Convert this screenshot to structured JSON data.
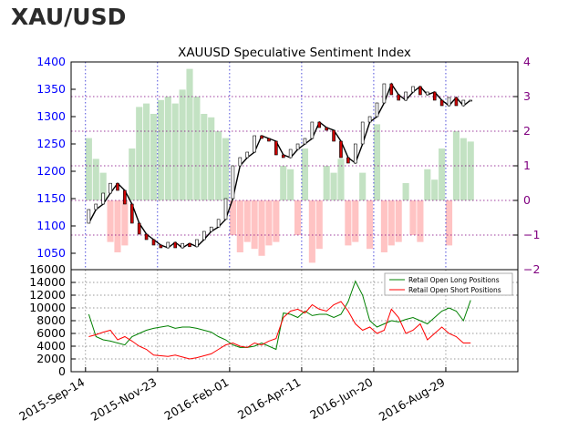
{
  "page": {
    "title": "XAU/USD"
  },
  "colors": {
    "price_axis": "#0000ff",
    "ssi_axis": "#800080",
    "long_fill": "#b8ddb8",
    "short_fill": "#ffb8b8",
    "long_line": "#008000",
    "short_line": "#ff0000"
  },
  "chart_data": [
    {
      "type": "candlestick+bar",
      "title": "XAUUSD Speculative Sentiment Index",
      "x_ticks": [
        "2015-Sep-14",
        "2015-Nov-23",
        "2016-Feb-01",
        "2016-Apr-11",
        "2016-Jun-20",
        "2016-Aug-29"
      ],
      "x_range": [
        "2015-Sep-14",
        "2016-Nov-07"
      ],
      "left_axis": {
        "ticks": [
          1050,
          1100,
          1150,
          1200,
          1250,
          1300,
          1350,
          1400
        ],
        "ylim": [
          1020,
          1400
        ]
      },
      "right_axis": {
        "ticks": [
          -2,
          -1,
          0,
          1,
          2,
          3,
          4
        ],
        "ylim": [
          -2,
          4
        ]
      },
      "grid": true,
      "price_series": {
        "name": "XAUUSD",
        "x": [
          "2015-Sep-14",
          "2015-Sep-21",
          "2015-Sep-28",
          "2015-Oct-05",
          "2015-Oct-12",
          "2015-Oct-19",
          "2015-Oct-26",
          "2015-Nov-02",
          "2015-Nov-09",
          "2015-Nov-16",
          "2015-Nov-23",
          "2015-Nov-30",
          "2015-Dec-07",
          "2015-Dec-14",
          "2015-Dec-21",
          "2015-Dec-28",
          "2016-Jan-04",
          "2016-Jan-11",
          "2016-Jan-18",
          "2016-Jan-25",
          "2016-Feb-01",
          "2016-Feb-08",
          "2016-Feb-15",
          "2016-Feb-22",
          "2016-Feb-29",
          "2016-Mar-07",
          "2016-Mar-14",
          "2016-Mar-21",
          "2016-Mar-28",
          "2016-Apr-04",
          "2016-Apr-11",
          "2016-Apr-18",
          "2016-Apr-25",
          "2016-May-02",
          "2016-May-09",
          "2016-May-16",
          "2016-May-23",
          "2016-May-30",
          "2016-Jun-06",
          "2016-Jun-13",
          "2016-Jun-20",
          "2016-Jun-27",
          "2016-Jul-04",
          "2016-Jul-11",
          "2016-Jul-18",
          "2016-Jul-25",
          "2016-Aug-01",
          "2016-Aug-08",
          "2016-Aug-15",
          "2016-Aug-22",
          "2016-Aug-29",
          "2016-Sep-05",
          "2016-Sep-12",
          "2016-Sep-19"
        ],
        "values": [
          1105,
          1130,
          1140,
          1160,
          1178,
          1165,
          1140,
          1105,
          1085,
          1075,
          1065,
          1060,
          1070,
          1060,
          1068,
          1062,
          1075,
          1090,
          1098,
          1112,
          1150,
          1210,
          1225,
          1235,
          1265,
          1260,
          1255,
          1230,
          1225,
          1240,
          1250,
          1260,
          1290,
          1280,
          1275,
          1255,
          1225,
          1215,
          1250,
          1290,
          1300,
          1325,
          1360,
          1340,
          1330,
          1345,
          1355,
          1340,
          1345,
          1330,
          1320,
          1335,
          1320,
          1330
        ]
      },
      "ssi_series": {
        "name": "SSI",
        "x": [
          "2015-Sep-14",
          "2015-Sep-21",
          "2015-Sep-28",
          "2015-Oct-05",
          "2015-Oct-12",
          "2015-Oct-19",
          "2015-Oct-26",
          "2015-Nov-02",
          "2015-Nov-09",
          "2015-Nov-16",
          "2015-Nov-23",
          "2015-Nov-30",
          "2015-Dec-07",
          "2015-Dec-14",
          "2015-Dec-21",
          "2015-Dec-28",
          "2016-Jan-04",
          "2016-Jan-11",
          "2016-Jan-18",
          "2016-Jan-25",
          "2016-Feb-01",
          "2016-Feb-08",
          "2016-Feb-15",
          "2016-Feb-22",
          "2016-Feb-29",
          "2016-Mar-07",
          "2016-Mar-14",
          "2016-Mar-21",
          "2016-Mar-28",
          "2016-Apr-04",
          "2016-Apr-11",
          "2016-Apr-18",
          "2016-Apr-25",
          "2016-May-02",
          "2016-May-09",
          "2016-May-16",
          "2016-May-23",
          "2016-May-30",
          "2016-Jun-06",
          "2016-Jun-13",
          "2016-Jun-20",
          "2016-Jun-27",
          "2016-Jul-04",
          "2016-Jul-11",
          "2016-Jul-18",
          "2016-Jul-25",
          "2016-Aug-01",
          "2016-Aug-08",
          "2016-Aug-15",
          "2016-Aug-22",
          "2016-Aug-29",
          "2016-Sep-05",
          "2016-Sep-12",
          "2016-Sep-19"
        ],
        "values": [
          1.8,
          1.2,
          0.8,
          -1.2,
          -1.5,
          -1.3,
          1.5,
          2.7,
          2.8,
          2.5,
          2.9,
          3.0,
          2.8,
          3.2,
          3.8,
          3.0,
          2.5,
          2.4,
          2.0,
          1.8,
          -1.0,
          -1.5,
          -1.2,
          -1.4,
          -1.6,
          -1.3,
          -1.2,
          1.0,
          0.9,
          -1.0,
          1.5,
          -1.8,
          -1.4,
          1.0,
          0.8,
          1.2,
          -1.3,
          -1.2,
          0.8,
          -1.4,
          2.2,
          -1.5,
          -1.3,
          -1.2,
          0.5,
          -1.0,
          -1.2,
          0.9,
          0.6,
          1.5,
          -1.3,
          2.0,
          1.8,
          1.7
        ]
      }
    },
    {
      "type": "line",
      "x_ticks": [
        "2015-Sep-14",
        "2015-Nov-23",
        "2016-Feb-01",
        "2016-Apr-11",
        "2016-Jun-20",
        "2016-Aug-29"
      ],
      "x_range": [
        "2015-Sep-14",
        "2016-Nov-07"
      ],
      "yticks": [
        0,
        2000,
        4000,
        6000,
        8000,
        10000,
        12000,
        14000,
        16000
      ],
      "ylim": [
        0,
        16000
      ],
      "grid": true,
      "legend_position": "top-right",
      "x": [
        "2015-Sep-14",
        "2015-Sep-21",
        "2015-Sep-28",
        "2015-Oct-05",
        "2015-Oct-12",
        "2015-Oct-19",
        "2015-Oct-26",
        "2015-Nov-02",
        "2015-Nov-09",
        "2015-Nov-16",
        "2015-Nov-23",
        "2015-Nov-30",
        "2015-Dec-07",
        "2015-Dec-14",
        "2015-Dec-21",
        "2015-Dec-28",
        "2016-Jan-04",
        "2016-Jan-11",
        "2016-Jan-18",
        "2016-Jan-25",
        "2016-Feb-01",
        "2016-Feb-08",
        "2016-Feb-15",
        "2016-Feb-22",
        "2016-Feb-29",
        "2016-Mar-07",
        "2016-Mar-14",
        "2016-Mar-21",
        "2016-Mar-28",
        "2016-Apr-04",
        "2016-Apr-11",
        "2016-Apr-18",
        "2016-Apr-25",
        "2016-May-02",
        "2016-May-09",
        "2016-May-16",
        "2016-May-23",
        "2016-May-30",
        "2016-Jun-06",
        "2016-Jun-13",
        "2016-Jun-20",
        "2016-Jun-27",
        "2016-Jul-04",
        "2016-Jul-11",
        "2016-Jul-18",
        "2016-Jul-25",
        "2016-Aug-01",
        "2016-Aug-08",
        "2016-Aug-15",
        "2016-Aug-22",
        "2016-Aug-29",
        "2016-Sep-05",
        "2016-Sep-12",
        "2016-Sep-19"
      ],
      "series": [
        {
          "name": "Retail Open Long Positions",
          "values": [
            9000,
            5500,
            5000,
            4800,
            4500,
            4200,
            5500,
            6000,
            6500,
            6800,
            7000,
            7200,
            6800,
            7000,
            7000,
            6800,
            6500,
            6200,
            5500,
            5000,
            4200,
            3800,
            3800,
            4000,
            4500,
            4000,
            3500,
            9200,
            9000,
            8500,
            9500,
            8800,
            9000,
            9000,
            8500,
            9000,
            11000,
            14200,
            12000,
            8000,
            7000,
            7500,
            8000,
            7800,
            8200,
            8500,
            8000,
            7500,
            8500,
            9500,
            10000,
            9500,
            8000,
            11200
          ]
        },
        {
          "name": "Retail Open Short Positions",
          "values": [
            5500,
            5800,
            6200,
            6500,
            5000,
            5500,
            4800,
            4000,
            3500,
            2600,
            2500,
            2400,
            2600,
            2300,
            2000,
            2200,
            2500,
            2800,
            3500,
            4200,
            4500,
            4000,
            3800,
            4500,
            4200,
            4800,
            5200,
            8500,
            9500,
            9800,
            9200,
            10500,
            9800,
            9500,
            10500,
            11000,
            9500,
            7500,
            6500,
            7000,
            6000,
            6500,
            9800,
            8500,
            6000,
            6500,
            7500,
            5000,
            6000,
            7000,
            6000,
            5500,
            4500,
            4500
          ]
        }
      ]
    }
  ]
}
